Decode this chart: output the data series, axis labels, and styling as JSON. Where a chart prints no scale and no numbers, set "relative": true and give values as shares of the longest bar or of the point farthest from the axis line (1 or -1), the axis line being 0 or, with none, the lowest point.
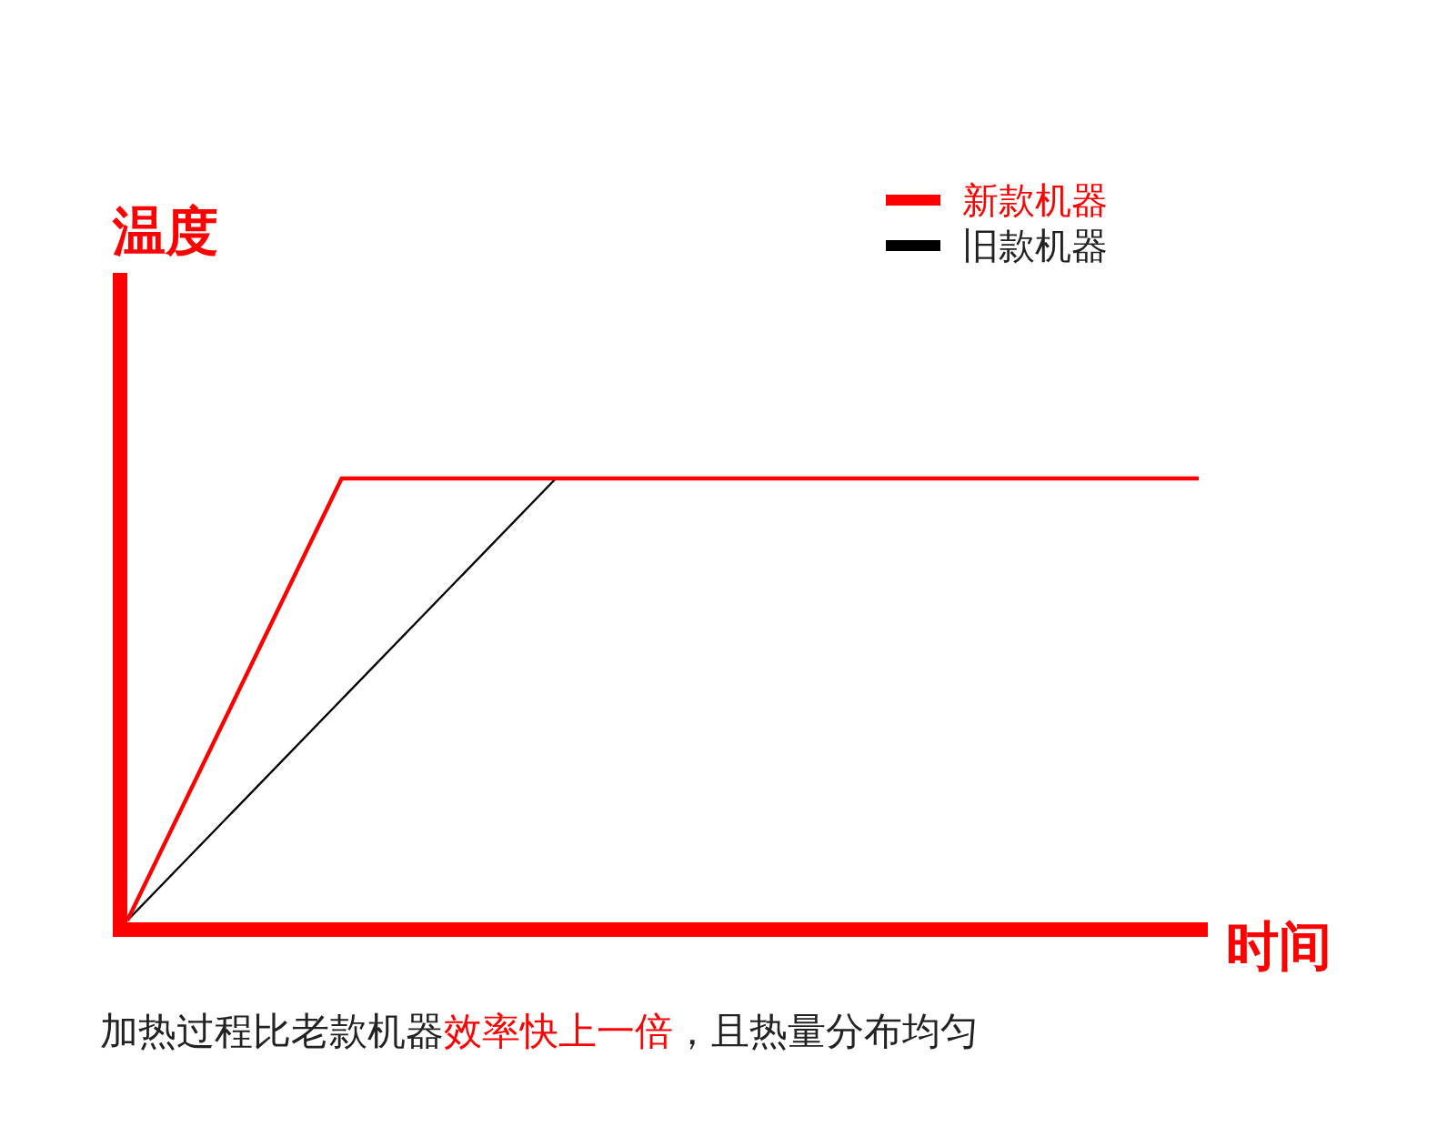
{
  "chart_data": {
    "type": "line",
    "relative": true,
    "xlabel": "时间",
    "ylabel": "温度",
    "categories": [
      null,
      null,
      null,
      null,
      null,
      null
    ],
    "series": [
      {
        "name": "新款机器",
        "color": "#ff0000",
        "values": [
          0,
          1,
          1,
          1,
          1,
          1
        ]
      },
      {
        "name": "旧款机器",
        "color": "#000000",
        "values": [
          0,
          0.5,
          1,
          null,
          null,
          null
        ]
      }
    ],
    "legend": "top right",
    "annotations": [
      "加热过程比老款机器",
      "效率快上一倍",
      "，且热量分布均匀"
    ]
  }
}
